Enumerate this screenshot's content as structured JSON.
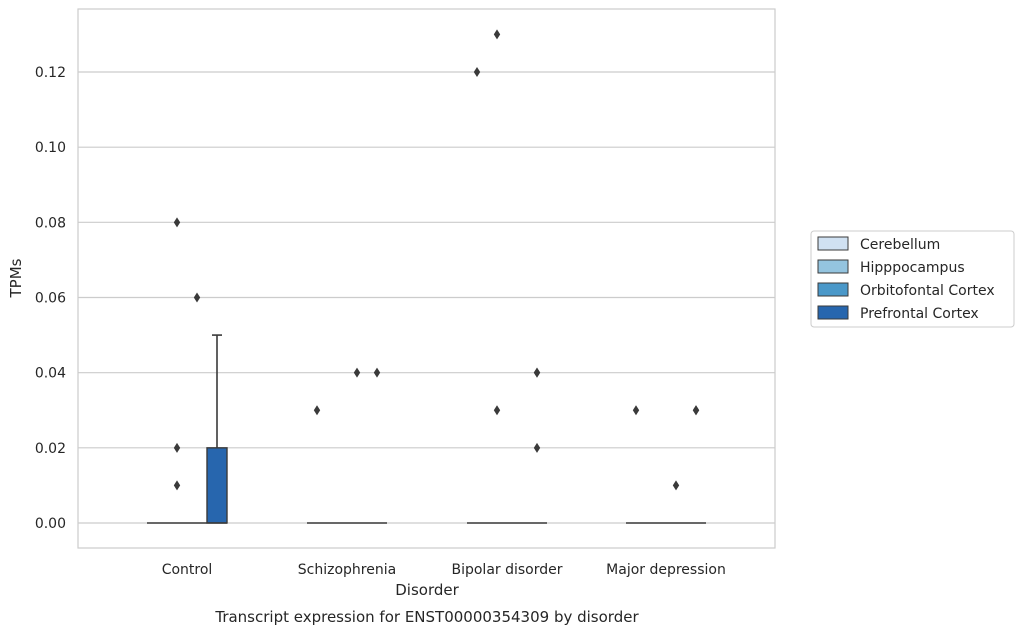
{
  "chart_data": {
    "type": "box",
    "caption": "Transcript expression for ENST00000354309 by disorder",
    "xlabel": "Disorder",
    "ylabel": "TPMs",
    "ylim": [
      -0.0065,
      0.137
    ],
    "yticks": [
      0.0,
      0.02,
      0.04,
      0.06,
      0.08,
      0.1,
      0.12
    ],
    "ytick_labels": [
      "0.00",
      "0.02",
      "0.04",
      "0.06",
      "0.08",
      "0.10",
      "0.12"
    ],
    "grid": "horizontal",
    "legend_position": "right",
    "categories": [
      "Control",
      "Schizophrenia",
      "Bipolar disorder",
      "Major depression"
    ],
    "series": [
      {
        "name": "Cerebellum",
        "color": "#d0e1f2",
        "boxes": [
          {
            "q1": 0,
            "median": 0,
            "q3": 0,
            "whisker_low": 0,
            "whisker_high": 0,
            "outliers": []
          },
          {
            "q1": 0,
            "median": 0,
            "q3": 0,
            "whisker_low": 0,
            "whisker_high": 0,
            "outliers": [
              0.03
            ]
          },
          {
            "q1": 0,
            "median": 0,
            "q3": 0,
            "whisker_low": 0,
            "whisker_high": 0,
            "outliers": [
              0.12
            ]
          },
          {
            "q1": 0,
            "median": 0,
            "q3": 0,
            "whisker_low": 0,
            "whisker_high": 0,
            "outliers": [
              0.03
            ]
          }
        ]
      },
      {
        "name": "Hipppocampus",
        "color": "#94c4df",
        "boxes": [
          {
            "q1": 0,
            "median": 0,
            "q3": 0,
            "whisker_low": 0,
            "whisker_high": 0,
            "outliers": [
              0.08,
              0.02,
              0.01
            ]
          },
          {
            "q1": 0,
            "median": 0,
            "q3": 0,
            "whisker_low": 0,
            "whisker_high": 0,
            "outliers": []
          },
          {
            "q1": 0,
            "median": 0,
            "q3": 0,
            "whisker_low": 0,
            "whisker_high": 0,
            "outliers": [
              0.13,
              0.03
            ]
          },
          {
            "q1": 0,
            "median": 0,
            "q3": 0,
            "whisker_low": 0,
            "whisker_high": 0,
            "outliers": []
          }
        ]
      },
      {
        "name": "Orbitofontal Cortex",
        "color": "#4a98c9",
        "boxes": [
          {
            "q1": 0,
            "median": 0,
            "q3": 0,
            "whisker_low": 0,
            "whisker_high": 0,
            "outliers": [
              0.06
            ]
          },
          {
            "q1": 0,
            "median": 0,
            "q3": 0,
            "whisker_low": 0,
            "whisker_high": 0,
            "outliers": [
              0.04
            ]
          },
          {
            "q1": 0,
            "median": 0,
            "q3": 0,
            "whisker_low": 0,
            "whisker_high": 0,
            "outliers": []
          },
          {
            "q1": 0,
            "median": 0,
            "q3": 0,
            "whisker_low": 0,
            "whisker_high": 0,
            "outliers": [
              0.01
            ]
          }
        ]
      },
      {
        "name": "Prefrontal Cortex",
        "color": "#2766ae",
        "boxes": [
          {
            "q1": 0,
            "median": 0,
            "q3": 0.02,
            "whisker_low": 0,
            "whisker_high": 0.05,
            "outliers": []
          },
          {
            "q1": 0,
            "median": 0,
            "q3": 0,
            "whisker_low": 0,
            "whisker_high": 0,
            "outliers": [
              0.04
            ]
          },
          {
            "q1": 0,
            "median": 0,
            "q3": 0,
            "whisker_low": 0,
            "whisker_high": 0,
            "outliers": [
              0.04,
              0.04,
              0.02
            ]
          },
          {
            "q1": 0,
            "median": 0,
            "q3": 0,
            "whisker_low": 0,
            "whisker_high": 0,
            "outliers": [
              0.03,
              0.03
            ]
          }
        ]
      }
    ]
  }
}
